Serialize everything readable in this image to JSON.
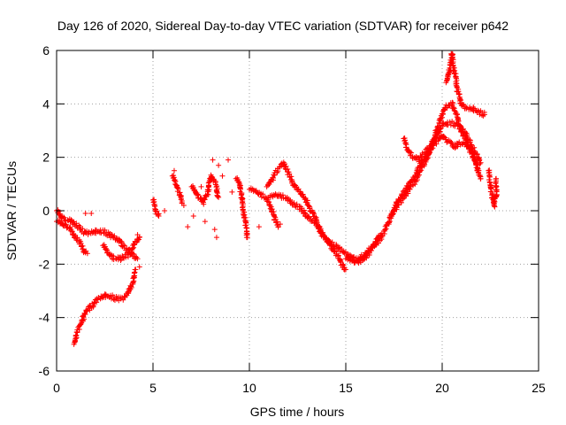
{
  "chart_data": {
    "type": "scatter",
    "title": "Day 126 of 2020, Sidereal Day-to-day VTEC variation (SDTVAR) for receiver p642",
    "xlabel": "GPS time / hours",
    "ylabel": "SDTVAR / TECUs",
    "xlim": [
      0,
      25
    ],
    "ylim": [
      -6,
      6
    ],
    "xticks": [
      0,
      5,
      10,
      15,
      20,
      25
    ],
    "yticks": [
      -6,
      -4,
      -2,
      0,
      2,
      4,
      6
    ],
    "grid": true,
    "marker": "plus",
    "series": [
      {
        "name": "SDTVAR",
        "color": "#ff0000",
        "segments": [
          [
            [
              0.0,
              0.0
            ],
            [
              0.2,
              -0.2
            ],
            [
              0.5,
              -0.35
            ],
            [
              0.8,
              -0.4
            ],
            [
              1.1,
              -0.6
            ],
            [
              1.4,
              -0.8
            ],
            [
              1.7,
              -0.85
            ],
            [
              2.0,
              -0.8
            ],
            [
              2.4,
              -0.75
            ],
            [
              2.7,
              -0.9
            ],
            [
              3.0,
              -1.0
            ],
            [
              3.3,
              -1.2
            ],
            [
              3.6,
              -1.4
            ],
            [
              3.9,
              -1.6
            ],
            [
              4.2,
              -1.8
            ]
          ],
          [
            [
              0.0,
              -0.4
            ],
            [
              0.3,
              -0.5
            ],
            [
              0.6,
              -0.6
            ],
            [
              0.9,
              -0.9
            ],
            [
              1.2,
              -1.2
            ],
            [
              1.4,
              -1.5
            ],
            [
              1.6,
              -1.6
            ]
          ],
          [
            [
              0.9,
              -5.0
            ],
            [
              1.0,
              -4.7
            ],
            [
              1.2,
              -4.3
            ],
            [
              1.4,
              -4.0
            ],
            [
              1.6,
              -3.7
            ],
            [
              1.9,
              -3.5
            ],
            [
              2.2,
              -3.3
            ],
            [
              2.5,
              -3.2
            ],
            [
              2.8,
              -3.2
            ],
            [
              3.1,
              -3.3
            ],
            [
              3.4,
              -3.3
            ],
            [
              3.7,
              -3.1
            ],
            [
              3.9,
              -2.8
            ],
            [
              4.0,
              -2.5
            ],
            [
              4.1,
              -2.2
            ]
          ],
          [
            [
              2.4,
              -1.3
            ],
            [
              2.7,
              -1.6
            ],
            [
              3.0,
              -1.8
            ],
            [
              3.3,
              -1.8
            ],
            [
              3.6,
              -1.7
            ],
            [
              3.9,
              -1.5
            ],
            [
              4.1,
              -1.2
            ],
            [
              4.3,
              -1.0
            ]
          ],
          [
            [
              5.0,
              0.4
            ],
            [
              5.1,
              0.1
            ],
            [
              5.2,
              -0.1
            ],
            [
              5.3,
              -0.2
            ]
          ],
          [
            [
              6.0,
              1.3
            ],
            [
              6.2,
              1.0
            ],
            [
              6.4,
              0.6
            ],
            [
              6.5,
              0.3
            ]
          ],
          [
            [
              7.0,
              0.9
            ],
            [
              7.2,
              0.7
            ],
            [
              7.4,
              0.5
            ],
            [
              7.6,
              0.3
            ],
            [
              7.8,
              0.6
            ],
            [
              8.0,
              1.3
            ],
            [
              8.2,
              1.1
            ],
            [
              8.4,
              0.5
            ]
          ],
          [
            [
              9.3,
              1.2
            ],
            [
              9.5,
              1.0
            ],
            [
              9.6,
              0.5
            ],
            [
              9.7,
              0.0
            ],
            [
              9.8,
              -0.5
            ],
            [
              9.9,
              -1.0
            ]
          ],
          [
            [
              10.0,
              0.8
            ],
            [
              10.4,
              0.7
            ],
            [
              10.8,
              0.5
            ],
            [
              11.1,
              0.2
            ],
            [
              11.3,
              -0.3
            ],
            [
              11.5,
              -0.6
            ]
          ],
          [
            [
              10.9,
              0.9
            ],
            [
              11.2,
              1.2
            ],
            [
              11.5,
              1.6
            ],
            [
              11.8,
              1.8
            ],
            [
              12.0,
              1.4
            ],
            [
              12.3,
              1.0
            ],
            [
              12.7,
              0.6
            ],
            [
              13.0,
              0.3
            ],
            [
              13.3,
              -0.1
            ],
            [
              13.6,
              -0.6
            ],
            [
              13.9,
              -1.0
            ],
            [
              14.2,
              -1.3
            ],
            [
              14.5,
              -1.6
            ],
            [
              14.8,
              -2.0
            ],
            [
              15.0,
              -2.2
            ]
          ],
          [
            [
              11.0,
              0.5
            ],
            [
              11.4,
              0.6
            ],
            [
              11.8,
              0.5
            ],
            [
              12.2,
              0.3
            ],
            [
              12.6,
              0.1
            ],
            [
              13.0,
              -0.2
            ],
            [
              13.4,
              -0.5
            ],
            [
              13.8,
              -0.9
            ],
            [
              14.2,
              -1.2
            ],
            [
              14.6,
              -1.4
            ],
            [
              15.0,
              -1.6
            ],
            [
              15.3,
              -1.8
            ],
            [
              15.6,
              -1.8
            ],
            [
              15.9,
              -1.7
            ],
            [
              16.2,
              -1.5
            ],
            [
              16.5,
              -1.2
            ],
            [
              16.8,
              -0.9
            ]
          ],
          [
            [
              15.0,
              -1.8
            ],
            [
              15.4,
              -1.9
            ],
            [
              15.8,
              -1.9
            ],
            [
              16.2,
              -1.6
            ],
            [
              16.6,
              -1.2
            ],
            [
              17.0,
              -0.8
            ],
            [
              17.3,
              -0.3
            ],
            [
              17.6,
              0.2
            ],
            [
              17.9,
              0.6
            ],
            [
              18.2,
              0.9
            ],
            [
              18.5,
              1.2
            ],
            [
              18.8,
              1.6
            ],
            [
              19.1,
              2.0
            ],
            [
              19.4,
              2.3
            ],
            [
              19.7,
              2.6
            ],
            [
              20.0,
              2.8
            ],
            [
              20.3,
              2.6
            ],
            [
              20.6,
              2.4
            ],
            [
              20.9,
              2.5
            ],
            [
              21.2,
              2.5
            ],
            [
              21.5,
              2.3
            ],
            [
              21.8,
              1.7
            ],
            [
              22.0,
              1.2
            ]
          ],
          [
            [
              17.3,
              -0.2
            ],
            [
              17.6,
              0.1
            ],
            [
              17.9,
              0.4
            ],
            [
              18.2,
              0.7
            ],
            [
              18.5,
              1.0
            ],
            [
              18.8,
              1.4
            ],
            [
              19.1,
              1.8
            ],
            [
              19.4,
              2.3
            ],
            [
              19.7,
              3.0
            ],
            [
              20.0,
              3.6
            ],
            [
              20.2,
              3.9
            ],
            [
              20.5,
              4.0
            ],
            [
              20.7,
              3.7
            ],
            [
              20.9,
              3.2
            ],
            [
              21.1,
              2.8
            ],
            [
              21.3,
              2.5
            ],
            [
              21.6,
              2.0
            ],
            [
              21.9,
              1.5
            ]
          ],
          [
            [
              18.0,
              2.7
            ],
            [
              18.2,
              2.3
            ],
            [
              18.5,
              2.0
            ],
            [
              18.8,
              1.9
            ],
            [
              19.1,
              2.2
            ],
            [
              19.4,
              2.4
            ],
            [
              19.7,
              2.8
            ],
            [
              20.0,
              3.2
            ],
            [
              20.4,
              3.3
            ],
            [
              20.8,
              3.2
            ],
            [
              21.1,
              3.0
            ],
            [
              21.4,
              2.6
            ],
            [
              21.7,
              2.2
            ],
            [
              22.0,
              1.8
            ]
          ],
          [
            [
              20.2,
              4.8
            ],
            [
              20.4,
              5.3
            ],
            [
              20.5,
              5.9
            ],
            [
              20.6,
              5.4
            ],
            [
              20.8,
              4.5
            ],
            [
              21.0,
              4.0
            ],
            [
              21.3,
              3.8
            ],
            [
              21.6,
              3.8
            ],
            [
              21.9,
              3.7
            ],
            [
              22.2,
              3.6
            ]
          ],
          [
            [
              22.4,
              1.5
            ],
            [
              22.5,
              1.0
            ],
            [
              22.6,
              0.5
            ],
            [
              22.7,
              0.2
            ],
            [
              22.8,
              0.6
            ],
            [
              22.8,
              1.2
            ]
          ]
        ],
        "scatter_points": [
          [
            1.5,
            -0.1
          ],
          [
            1.8,
            -0.1
          ],
          [
            6.6,
            0.2
          ],
          [
            6.8,
            -0.6
          ],
          [
            7.1,
            -0.2
          ],
          [
            7.5,
            0.9
          ],
          [
            8.1,
            1.9
          ],
          [
            8.4,
            1.7
          ],
          [
            8.6,
            1.3
          ],
          [
            8.9,
            1.9
          ],
          [
            8.2,
            -0.7
          ],
          [
            8.3,
            -1.0
          ],
          [
            7.7,
            -0.4
          ],
          [
            9.1,
            0.7
          ],
          [
            10.5,
            -0.6
          ],
          [
            11.6,
            -0.5
          ],
          [
            6.1,
            1.5
          ],
          [
            5.6,
            0.0
          ],
          [
            4.3,
            -2.1
          ],
          [
            4.2,
            -0.9
          ]
        ]
      }
    ]
  }
}
